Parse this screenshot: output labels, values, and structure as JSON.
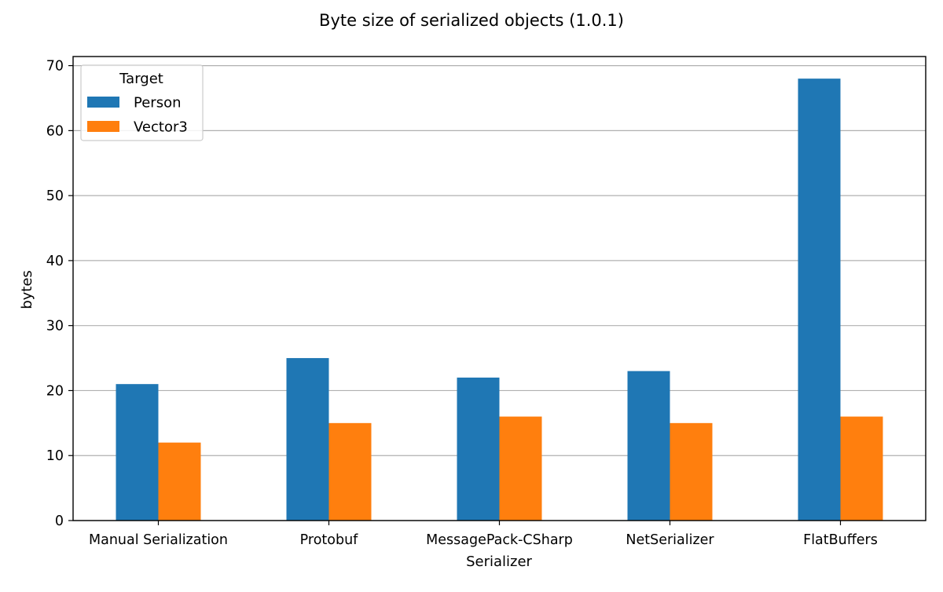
{
  "chart_data": {
    "type": "bar",
    "title": "Byte size of serialized objects (1.0.1)",
    "xlabel": "Serializer",
    "ylabel": "bytes",
    "categories": [
      "Manual Serialization",
      "Protobuf",
      "MessagePack-CSharp",
      "NetSerializer",
      "FlatBuffers"
    ],
    "series": [
      {
        "name": "Person",
        "color": "#1f77b4",
        "values": [
          21,
          25,
          22,
          23,
          68
        ]
      },
      {
        "name": "Vector3",
        "color": "#ff7f0e",
        "values": [
          12,
          15,
          16,
          15,
          16
        ]
      }
    ],
    "ylim": [
      0,
      71.4
    ],
    "yticks": [
      0,
      10,
      20,
      30,
      40,
      50,
      60,
      70
    ],
    "grid": "y",
    "legend": {
      "title": "Target",
      "placement": "top-left"
    }
  }
}
